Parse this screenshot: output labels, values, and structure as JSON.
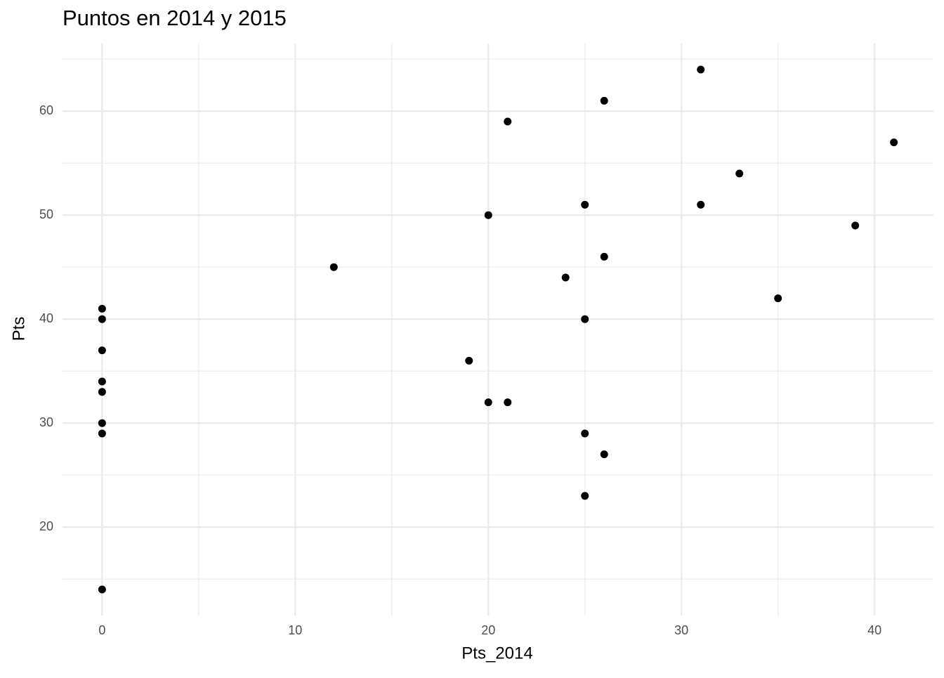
{
  "chart_data": {
    "type": "scatter",
    "title": "Puntos en 2014 y 2015",
    "x_label": "Pts_2014",
    "y_label": "Pts",
    "x": [
      0,
      0,
      0,
      0,
      0,
      0,
      0,
      0,
      12,
      19,
      20,
      20,
      21,
      21,
      24,
      25,
      25,
      25,
      25,
      26,
      26,
      26,
      31,
      31,
      33,
      35,
      39,
      41
    ],
    "values": [
      41,
      40,
      37,
      34,
      33,
      30,
      29,
      14,
      45,
      36,
      50,
      32,
      59,
      32,
      44,
      51,
      40,
      29,
      23,
      61,
      46,
      27,
      64,
      51,
      54,
      42,
      49,
      57
    ],
    "color": "#000000",
    "xlim": [
      -2.05,
      43.05
    ],
    "ylim": [
      11.5,
      66.5
    ],
    "xticks": [
      0,
      10,
      20,
      30,
      40
    ],
    "yticks": [
      20,
      30,
      40,
      50,
      60
    ],
    "x_minor_ticks": [
      5,
      15,
      25,
      35
    ],
    "y_minor_ticks": [
      15,
      25,
      35,
      45,
      55,
      65
    ],
    "grid": true
  }
}
